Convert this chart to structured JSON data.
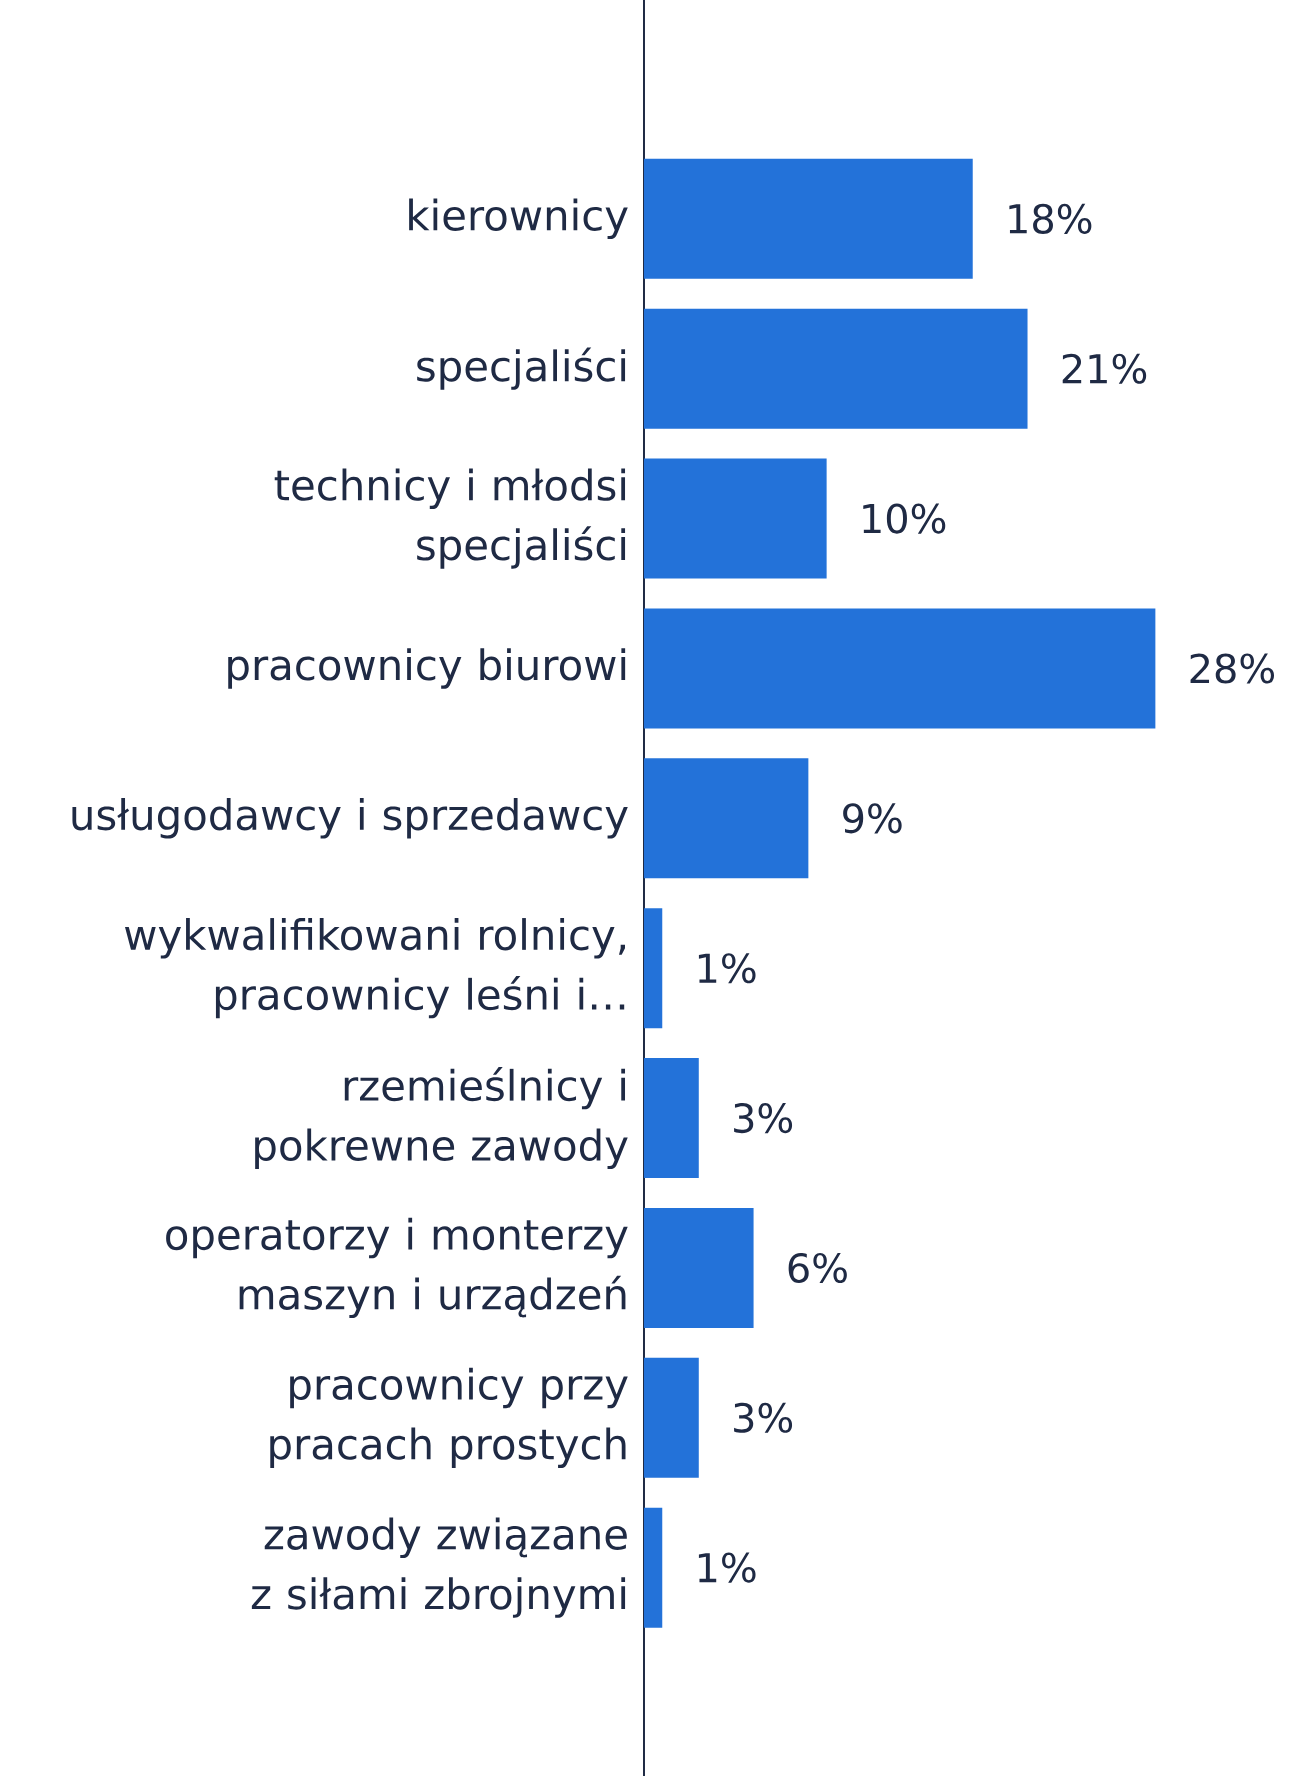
{
  "chart_data": {
    "type": "bar",
    "orientation": "horizontal",
    "categories": [
      "kierownicy",
      "specjaliści",
      "technicy i młodsi specjaliści",
      "pracownicy biurowi",
      "usługodawcy i sprzedawcy",
      "wykwalifikowani rolnicy, pracownicy leśni i…",
      "rzemieślnicy i pokrewne zawody",
      "operatorzy i monterzy maszyn i urządzeń",
      "pracownicy przy pracach prostych",
      "zawody związane z siłami zbrojnymi"
    ],
    "values": [
      18,
      21,
      10,
      28,
      9,
      1,
      3,
      6,
      3,
      1
    ],
    "value_labels": [
      "18%",
      "21%",
      "10%",
      "28%",
      "9%",
      "1%",
      "3%",
      "6%",
      "3%",
      "1%"
    ],
    "color": "#2372d9"
  }
}
